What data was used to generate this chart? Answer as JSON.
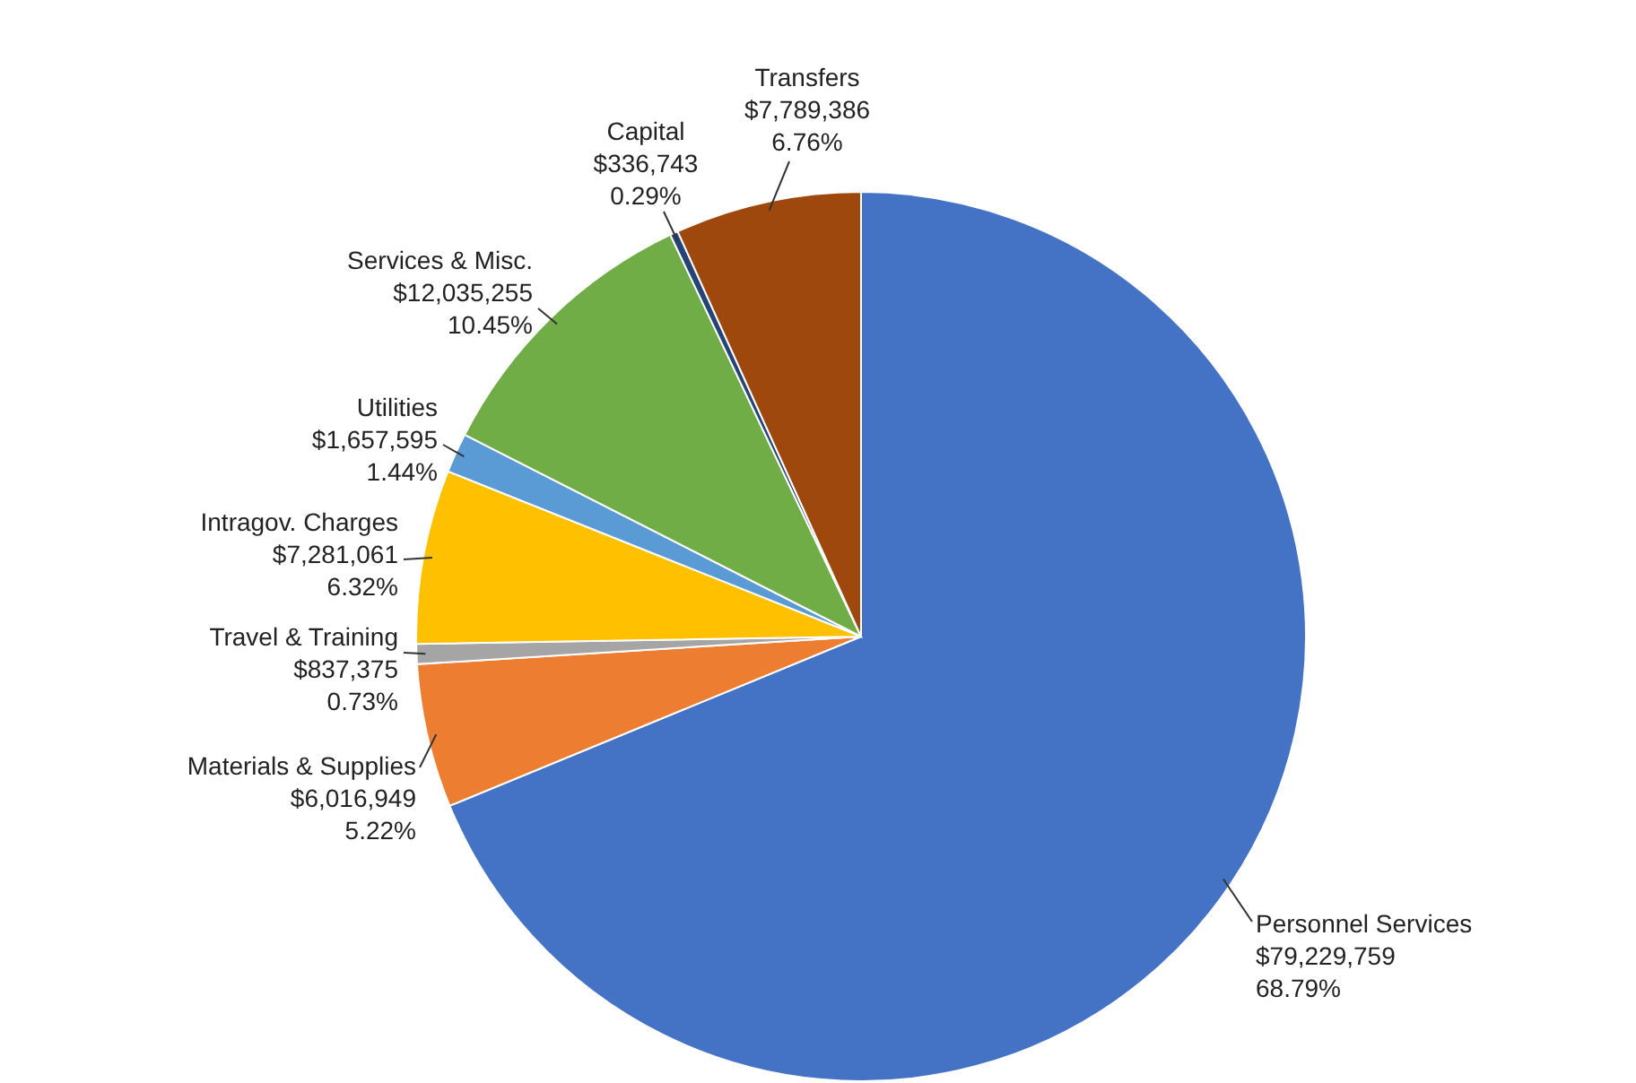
{
  "chart_data": {
    "type": "pie",
    "categories": [
      "Personnel Services",
      "Materials & Supplies",
      "Travel & Training",
      "Intragov. Charges",
      "Utilities",
      "Services & Misc.",
      "Capital",
      "Transfers"
    ],
    "values": [
      79229759,
      6016949,
      837375,
      7281061,
      1657595,
      12035255,
      336743,
      7789386
    ],
    "value_labels": [
      "$79,229,759\n68.79%",
      "$6,016,949\n5.22%",
      "$837,375\n0.73%",
      "$7,281,061\n6.32%",
      "$1,657,595\n1.44%",
      "$12,035,255\n10.45%",
      "$336,743\n0.29%",
      "$7,789,386\n6.76%"
    ],
    "colors": [
      "#4472c4",
      "#ed7d31",
      "#a5a5a5",
      "#ffc000",
      "#5b9bd5",
      "#70ad47",
      "#264478",
      "#9e480e"
    ]
  }
}
